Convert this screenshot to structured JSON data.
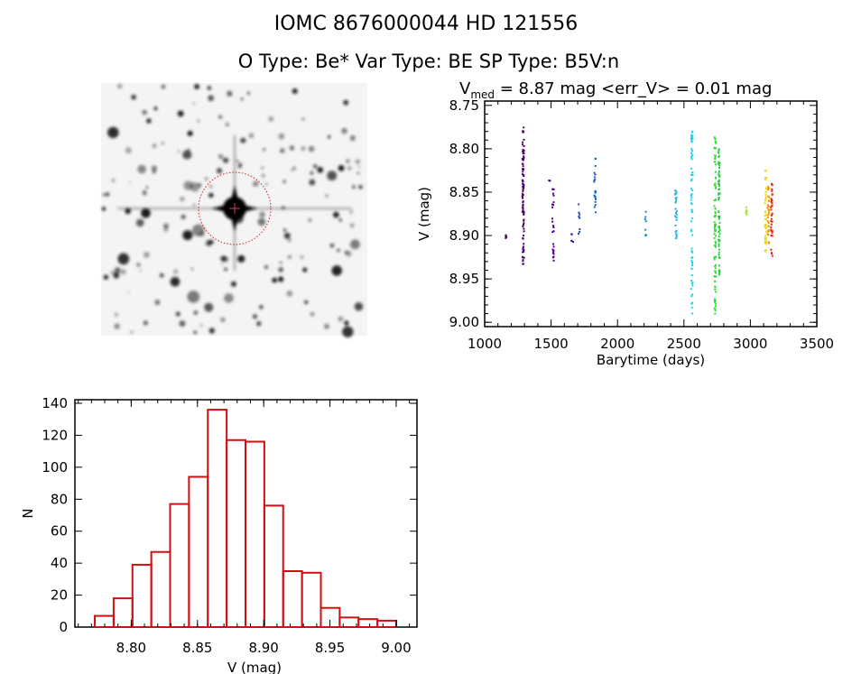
{
  "header": {
    "title": "IOMC 8676000044    HD 121556",
    "subtitle": "O Type: Be*  Var Type: BE   SP Type: B5V:n"
  },
  "chart_data": [
    {
      "type": "scatter",
      "title_prefix": "V",
      "title_sub": "med",
      "title_rest": " = 8.87 mag <err_V> = 0.01 mag",
      "xlabel": "Barytime (days)",
      "ylabel": "V (mag)",
      "xlim": [
        1000,
        3500
      ],
      "ylim": [
        9.005,
        8.745
      ],
      "xticks": [
        "1000",
        "1500",
        "2000",
        "2500",
        "3000",
        "3500"
      ],
      "yticks": [
        "8.75",
        "8.80",
        "8.85",
        "8.90",
        "8.95",
        "9.00"
      ],
      "clusters": [
        {
          "x": 1160,
          "v": [
            8.897,
            8.903
          ],
          "n": 4,
          "color": "#3a0048"
        },
        {
          "x": 1290,
          "v": [
            8.775,
            8.935
          ],
          "n": 90,
          "color": "#4a0068"
        },
        {
          "x": 1485,
          "v": [
            8.834,
            8.838
          ],
          "n": 3,
          "color": "#50008a"
        },
        {
          "x": 1515,
          "v": [
            8.845,
            8.93
          ],
          "n": 25,
          "color": "#52009a"
        },
        {
          "x": 1660,
          "v": [
            8.895,
            8.91
          ],
          "n": 6,
          "color": "#3410a8"
        },
        {
          "x": 1710,
          "v": [
            8.86,
            8.9
          ],
          "n": 8,
          "color": "#2040c0"
        },
        {
          "x": 1830,
          "v": [
            8.81,
            8.88
          ],
          "n": 22,
          "color": "#1060d0"
        },
        {
          "x": 2210,
          "v": [
            8.87,
            8.905
          ],
          "n": 8,
          "color": "#1090c8"
        },
        {
          "x": 2440,
          "v": [
            8.83,
            8.905
          ],
          "n": 25,
          "color": "#20b0e0"
        },
        {
          "x": 2560,
          "v": [
            8.775,
            8.99
          ],
          "n": 70,
          "color": "#20d0e8"
        },
        {
          "x": 2735,
          "v": [
            8.785,
            8.99
          ],
          "n": 90,
          "color": "#30e030"
        },
        {
          "x": 2765,
          "v": [
            8.8,
            8.95
          ],
          "n": 70,
          "color": "#20d040"
        },
        {
          "x": 2970,
          "v": [
            8.86,
            8.885
          ],
          "n": 8,
          "color": "#a8e040"
        },
        {
          "x": 3115,
          "v": [
            8.825,
            8.92
          ],
          "n": 40,
          "color": "#f0d800"
        },
        {
          "x": 3135,
          "v": [
            8.84,
            8.91
          ],
          "n": 30,
          "color": "#f09000"
        },
        {
          "x": 3160,
          "v": [
            8.84,
            8.925
          ],
          "n": 35,
          "color": "#e02010"
        }
      ]
    },
    {
      "type": "bar",
      "xlabel": "V (mag)",
      "ylabel": "N",
      "xlim": [
        8.7575,
        9.0157
      ],
      "ylim": [
        0,
        140
      ],
      "xticks": [
        "8.80",
        "8.85",
        "8.90",
        "8.95",
        "9.00"
      ],
      "yticks": [
        "0",
        "20",
        "40",
        "60",
        "80",
        "100",
        "120",
        "140"
      ],
      "bin_start": 8.7725,
      "bin_width": 0.01422,
      "values": [
        7,
        18,
        39,
        47,
        77,
        94,
        136,
        117,
        116,
        76,
        35,
        34,
        12,
        6,
        5,
        4
      ],
      "color": "#d01010"
    }
  ]
}
